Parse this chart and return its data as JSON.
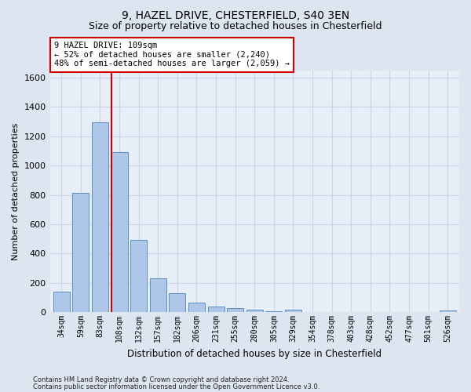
{
  "title1": "9, HAZEL DRIVE, CHESTERFIELD, S40 3EN",
  "title2": "Size of property relative to detached houses in Chesterfield",
  "xlabel": "Distribution of detached houses by size in Chesterfield",
  "ylabel": "Number of detached properties",
  "footnote1": "Contains HM Land Registry data © Crown copyright and database right 2024.",
  "footnote2": "Contains public sector information licensed under the Open Government Licence v3.0.",
  "bar_labels": [
    "34sqm",
    "59sqm",
    "83sqm",
    "108sqm",
    "132sqm",
    "157sqm",
    "182sqm",
    "206sqm",
    "231sqm",
    "255sqm",
    "280sqm",
    "305sqm",
    "329sqm",
    "354sqm",
    "378sqm",
    "403sqm",
    "428sqm",
    "452sqm",
    "477sqm",
    "501sqm",
    "526sqm"
  ],
  "bar_values": [
    140,
    815,
    1295,
    1090,
    490,
    230,
    130,
    65,
    37,
    25,
    15,
    5,
    15,
    3,
    3,
    3,
    3,
    3,
    3,
    3,
    10
  ],
  "bar_color": "#aec6e8",
  "bar_edge_color": "#5a8fc0",
  "vline_index": 3,
  "vline_color": "#cc0000",
  "annotation_line1": "9 HAZEL DRIVE: 109sqm",
  "annotation_line2": "← 52% of detached houses are smaller (2,240)",
  "annotation_line3": "48% of semi-detached houses are larger (2,059) →",
  "annotation_box_color": "#ffffff",
  "annotation_box_edge": "#cc0000",
  "ylim": [
    0,
    1650
  ],
  "yticks": [
    0,
    200,
    400,
    600,
    800,
    1000,
    1200,
    1400,
    1600
  ],
  "background_color": "#dde5f0",
  "plot_bg_color": "#e8eef7",
  "grid_color": "#c8d4e8",
  "title1_fontsize": 10,
  "title2_fontsize": 9
}
